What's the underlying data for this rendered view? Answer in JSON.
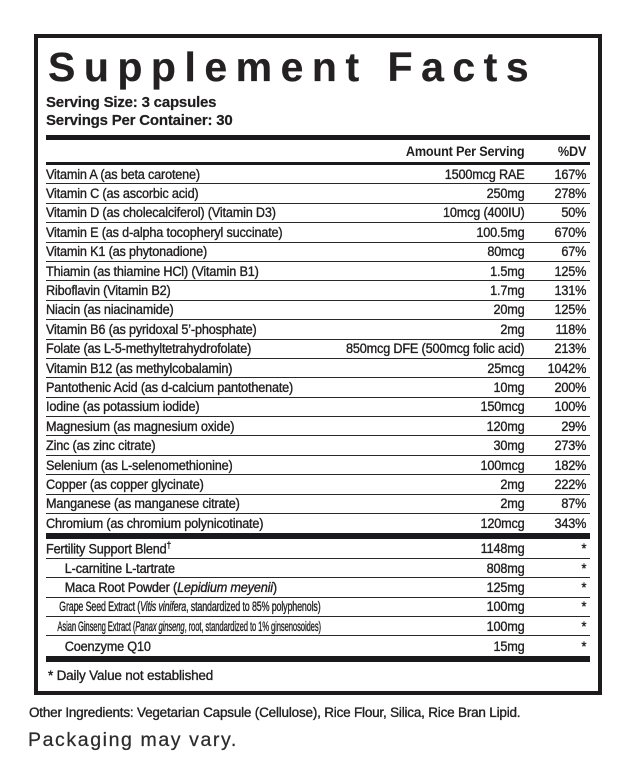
{
  "panel": {
    "title": "Supplement Facts",
    "serving_size": "Serving Size: 3 capsules",
    "servings_per_container": "Servings Per Container: 30",
    "col_amount": "Amount Per Serving",
    "col_dv": "%DV",
    "footnote": "* Daily Value not established"
  },
  "rows": [
    {
      "name": "Vitamin A (as beta carotene)",
      "amount": "1500mcg RAE",
      "dv": "167%"
    },
    {
      "name": "Vitamin C (as ascorbic acid)",
      "amount": "250mg",
      "dv": "278%"
    },
    {
      "name": "Vitamin D (as cholecalciferol) (Vitamin D3)",
      "amount": "10mcg (400IU)",
      "dv": "50%"
    },
    {
      "name": "Vitamin E (as d-alpha tocopheryl succinate)",
      "amount": "100.5mg",
      "dv": "670%"
    },
    {
      "name": "Vitamin K1 (as phytonadione)",
      "amount": "80mcg",
      "dv": "67%"
    },
    {
      "name": "Thiamin (as thiamine HCl) (Vitamin B1)",
      "amount": "1.5mg",
      "dv": "125%"
    },
    {
      "name": "Riboflavin (Vitamin B2)",
      "amount": "1.7mg",
      "dv": "131%"
    },
    {
      "name": "Niacin (as niacinamide)",
      "amount": "20mg",
      "dv": "125%"
    },
    {
      "name": "Vitamin B6 (as pyridoxal 5’-phosphate)",
      "amount": "2mg",
      "dv": "118%"
    },
    {
      "name": "Folate (as L-5-methyltetrahydrofolate)",
      "amount": "850mcg DFE (500mcg folic acid)",
      "dv": "213%"
    },
    {
      "name": "Vitamin B12 (as methylcobalamin)",
      "amount": "25mcg",
      "dv": "1042%"
    },
    {
      "name": "Pantothenic Acid (as d-calcium pantothenate)",
      "amount": "10mg",
      "dv": "200%"
    },
    {
      "name": "Iodine (as potassium iodide)",
      "amount": "150mcg",
      "dv": "100%"
    },
    {
      "name": "Magnesium (as magnesium oxide)",
      "amount": "120mg",
      "dv": "29%"
    },
    {
      "name": "Zinc (as zinc citrate)",
      "amount": "30mg",
      "dv": "273%"
    },
    {
      "name": "Selenium (as L-selenomethionine)",
      "amount": "100mcg",
      "dv": "182%"
    },
    {
      "name": "Copper (as copper glycinate)",
      "amount": "2mg",
      "dv": "222%"
    },
    {
      "name": "Manganese (as manganese citrate)",
      "amount": "2mg",
      "dv": "87%"
    },
    {
      "name": "Chromium (as chromium polynicotinate)",
      "amount": "120mcg",
      "dv": "343%"
    }
  ],
  "blend": {
    "header": {
      "name": "Fertility Support Blend",
      "dagger": "†",
      "amount": "1148mg",
      "dv": "*"
    },
    "items": [
      {
        "name": "L-carnitine L-tartrate",
        "amount": "808mg",
        "dv": "*"
      },
      {
        "name_pre": "Maca Root Powder (",
        "name_italic": "Lepidium meyenii",
        "name_post": ")",
        "amount": "125mg",
        "dv": "*"
      },
      {
        "name_pre": "Grape Seed Extract (",
        "name_italic": "Vitis vinifera",
        "name_post": ", standardized to 85% polyphenols)",
        "amount": "100mg",
        "dv": "*"
      },
      {
        "name_pre": "Asian Ginseng Extract (",
        "name_italic": "Panax ginseng",
        "name_post": ", root, standardized to 1% ginsenosoides)",
        "amount": "100mg",
        "dv": "*"
      },
      {
        "name": "Coenzyme Q10",
        "amount": "15mg",
        "dv": "*"
      }
    ]
  },
  "footer": {
    "other_ingredients": "Other Ingredients: Vegetarian Capsule (Cellulose), Rice Flour, Silica, Rice Bran Lipid.",
    "packaging_note": "Packaging may vary."
  }
}
